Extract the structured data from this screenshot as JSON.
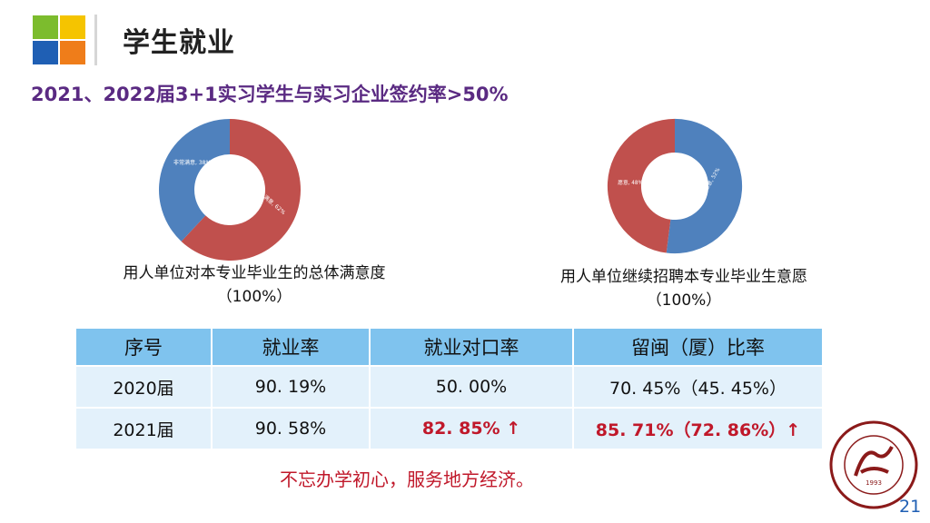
{
  "header": {
    "title": "学生就业"
  },
  "subtitle": "2021、2022届3+1实习学生与实习企业签约率>50%",
  "charts": [
    {
      "caption_line1": "用人单位对本专业毕业生的总体满意度",
      "caption_line2": "（100%）",
      "slices": [
        {
          "label": "满意, 62%",
          "value": 62,
          "color": "#c0504d"
        },
        {
          "label": "非常满意, 38%",
          "value": 38,
          "color": "#4f81bd"
        }
      ]
    },
    {
      "caption_line1": "用人单位继续招聘本专业毕业生意愿",
      "caption_line2": "（100%）",
      "slices": [
        {
          "label": "非常愿意, 52%",
          "value": 52,
          "color": "#4f81bd"
        },
        {
          "label": "愿意, 48%",
          "value": 48,
          "color": "#c0504d"
        }
      ]
    }
  ],
  "table": {
    "headers": [
      "序号",
      "就业率",
      "就业对口率",
      "留闽（厦）比率"
    ],
    "rows": [
      [
        "2020届",
        "90. 19%",
        "50. 00%",
        "70. 45%（45. 45%）"
      ],
      [
        "2021届",
        "90. 58%",
        "82. 85% ↑",
        "85. 71%（72. 86%）↑"
      ]
    ]
  },
  "slogan": "不忘办学初心，服务地方经济。",
  "seal": {
    "text": "Xiamen Huaxia University",
    "year": "1993"
  },
  "page_number": "21",
  "colors": {
    "accent": "#5a2a82",
    "highlight": "#c0182a",
    "table_header": "#7fc3ee",
    "table_row": "#e3f1fb"
  }
}
